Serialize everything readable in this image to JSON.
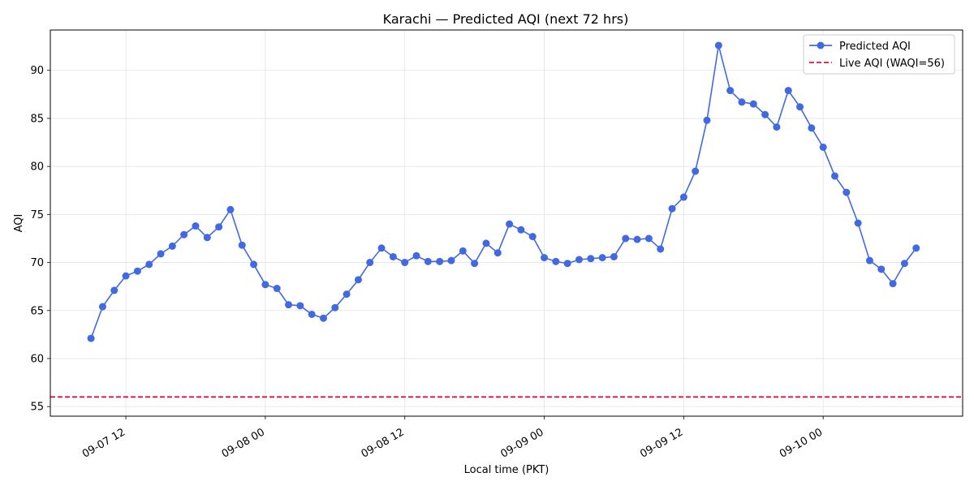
{
  "chart_data": {
    "type": "line",
    "title": "Karachi — Predicted AQI (next 72 hrs)",
    "xlabel": "Local time (PKT)",
    "ylabel": "AQI",
    "x_start": "2025-09-07 09:00",
    "x_step_hours": 1,
    "x_range": [
      "2025-09-07 05:30",
      "2025-09-10 12:00"
    ],
    "xticks": [
      {
        "label": "09-07 12",
        "time": "2025-09-07 12:00"
      },
      {
        "label": "09-08 00",
        "time": "2025-09-08 00:00"
      },
      {
        "label": "09-08 12",
        "time": "2025-09-08 12:00"
      },
      {
        "label": "09-09 00",
        "time": "2025-09-09 00:00"
      },
      {
        "label": "09-09 12",
        "time": "2025-09-09 12:00"
      },
      {
        "label": "09-10 00",
        "time": "2025-09-10 00:00"
      }
    ],
    "ylim": [
      54.0,
      94.2
    ],
    "yticks": [
      55,
      60,
      65,
      70,
      75,
      80,
      85,
      90
    ],
    "grid": true,
    "legend_position": "top-right",
    "series": [
      {
        "name": "Predicted AQI",
        "color": "#4169e1",
        "marker": "circle",
        "values": [
          62.1,
          65.4,
          67.1,
          68.6,
          69.1,
          69.8,
          70.9,
          71.7,
          72.9,
          73.8,
          72.6,
          73.7,
          75.5,
          71.8,
          69.8,
          67.7,
          67.3,
          65.6,
          65.5,
          64.6,
          64.2,
          65.3,
          66.7,
          68.2,
          70.0,
          71.5,
          70.6,
          70.0,
          70.7,
          70.1,
          70.1,
          70.2,
          71.2,
          69.9,
          72.0,
          71.0,
          74.0,
          73.4,
          72.7,
          70.5,
          70.1,
          69.9,
          70.3,
          70.4,
          70.5,
          70.6,
          72.5,
          72.4,
          72.5,
          71.4,
          75.6,
          76.8,
          79.5,
          84.8,
          92.6,
          87.9,
          86.7,
          86.5,
          85.4,
          84.1,
          87.9,
          86.2,
          84.0,
          82.0,
          79.0,
          77.3,
          74.1,
          70.2,
          69.3,
          67.8,
          69.9,
          71.5
        ]
      }
    ],
    "reference_line": {
      "name": "Live AQI (WAQI=56)",
      "value": 56,
      "color": "#dc143c",
      "style": "dashed"
    }
  }
}
